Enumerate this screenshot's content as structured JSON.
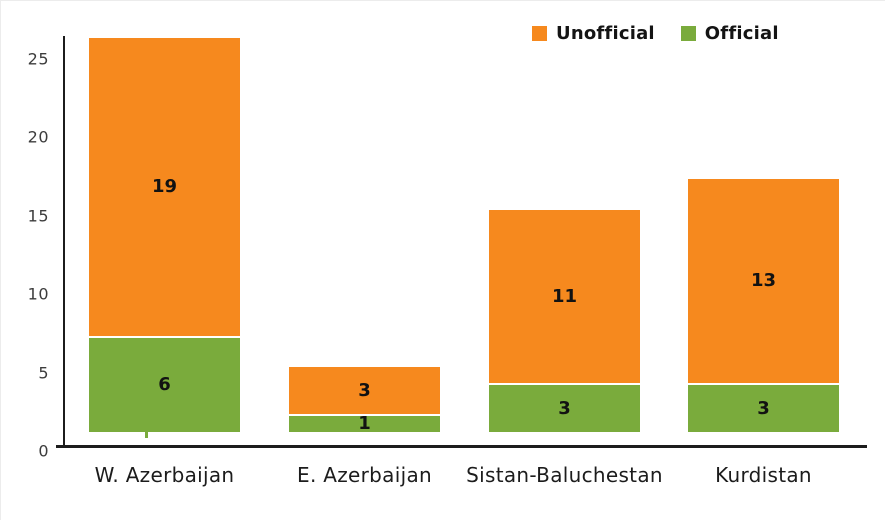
{
  "chart_data": {
    "type": "bar",
    "stacked": true,
    "title": "",
    "xlabel": "",
    "ylabel": "",
    "grid": false,
    "legend_position": "top-right",
    "categories": [
      "W. Azerbaijan",
      "E. Azerbaijan",
      "Sistan-Baluchestan",
      "Kurdistan"
    ],
    "series": [
      {
        "name": "Unofficial",
        "color": "#F6891E",
        "values": [
          19,
          3,
          11,
          13
        ]
      },
      {
        "name": "Official",
        "color": "#7AAB3C",
        "values": [
          6,
          1,
          3,
          3
        ]
      }
    ],
    "totals": [
      25,
      4,
      14,
      16
    ],
    "yticks": [
      0,
      5,
      10,
      15,
      20,
      25
    ],
    "ylim": [
      0,
      26.5
    ]
  },
  "colors": {
    "unofficial": "#F6891E",
    "official": "#7AAB3C",
    "axis": "#1C1C1C",
    "tick_label": "#3C3C3C",
    "category_label": "#1C1C1C",
    "value_label": "#121212",
    "background": "#FFFFFF"
  }
}
